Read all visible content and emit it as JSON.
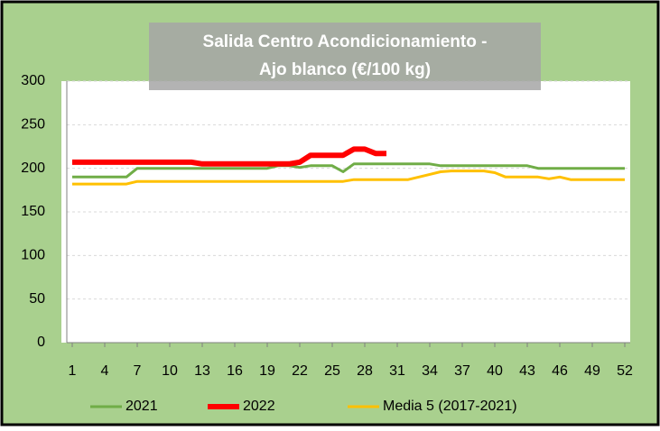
{
  "chart_data": {
    "type": "line",
    "title": [
      "Salida Centro Acondicionamiento -",
      "Ajo blanco (€/100 kg)"
    ],
    "x": [
      1,
      2,
      3,
      4,
      5,
      6,
      7,
      8,
      9,
      10,
      11,
      12,
      13,
      14,
      15,
      16,
      17,
      18,
      19,
      20,
      21,
      22,
      23,
      24,
      25,
      26,
      27,
      28,
      29,
      30,
      31,
      32,
      33,
      34,
      35,
      36,
      37,
      38,
      39,
      40,
      41,
      42,
      43,
      44,
      45,
      46,
      47,
      48,
      49,
      50,
      51,
      52
    ],
    "xlim": [
      0.5,
      52.5
    ],
    "xticks": [
      1,
      4,
      7,
      10,
      13,
      16,
      19,
      22,
      25,
      28,
      31,
      34,
      37,
      40,
      43,
      46,
      49,
      52
    ],
    "ylim": [
      0,
      300
    ],
    "yticks": [
      0,
      50,
      100,
      150,
      200,
      250,
      300
    ],
    "grid": true,
    "legend": "bottom",
    "series": [
      {
        "name": "2021",
        "color": "#70ad47",
        "values": [
          190,
          190,
          190,
          190,
          190,
          190,
          200,
          200,
          200,
          200,
          200,
          200,
          200,
          200,
          200,
          200,
          200,
          200,
          200,
          203,
          203,
          201,
          203,
          203,
          203,
          196,
          205,
          205,
          205,
          205,
          205,
          205,
          205,
          205,
          203,
          203,
          203,
          203,
          203,
          203,
          203,
          203,
          203,
          200,
          200,
          200,
          200,
          200,
          200,
          200,
          200,
          200
        ]
      },
      {
        "name": "2022",
        "color": "#ff0000",
        "values": [
          207,
          207,
          207,
          207,
          207,
          207,
          207,
          207,
          207,
          207,
          207,
          207,
          205,
          205,
          205,
          205,
          205,
          205,
          205,
          205,
          205,
          207,
          215,
          215,
          215,
          215,
          222,
          222,
          217,
          217,
          null,
          null,
          null,
          null,
          null,
          null,
          null,
          null,
          null,
          null,
          null,
          null,
          null,
          null,
          null,
          null,
          null,
          null,
          null,
          null,
          null,
          null
        ]
      },
      {
        "name": "Media 5 (2017-2021)",
        "color": "#ffc000",
        "values": [
          182,
          182,
          182,
          182,
          182,
          182,
          185,
          185,
          185,
          185,
          185,
          185,
          185,
          185,
          185,
          185,
          185,
          185,
          185,
          185,
          185,
          185,
          185,
          185,
          185,
          185,
          187,
          187,
          187,
          187,
          187,
          187,
          190,
          193,
          196,
          197,
          197,
          197,
          197,
          195,
          190,
          190,
          190,
          190,
          188,
          190,
          187,
          187,
          187,
          187,
          187,
          187
        ]
      }
    ]
  }
}
